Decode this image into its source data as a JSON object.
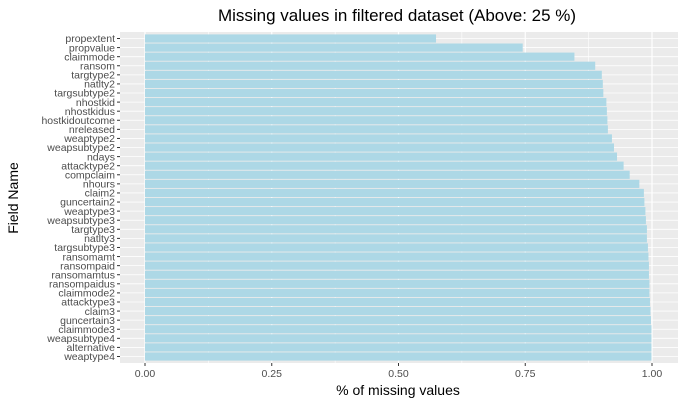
{
  "chart_data": {
    "type": "bar",
    "orientation": "horizontal",
    "title": "Missing values in filtered dataset (Above: 25 %)",
    "xlabel": "% of missing values",
    "ylabel": "Field Name",
    "xlim": [
      0,
      1.0
    ],
    "xticks": [
      "0.00",
      "0.25",
      "0.50",
      "0.75",
      "1.00"
    ],
    "grid": true,
    "bar_color": "#add8e6",
    "panel_color": "#ebebeb",
    "categories": [
      "propextent",
      "propvalue",
      "claimmode",
      "ransom",
      "targtype2",
      "natlty2",
      "targsubtype2",
      "nhostkid",
      "nhostkidus",
      "hostkidoutcome",
      "nreleased",
      "weaptype2",
      "weapsubtype2",
      "ndays",
      "attacktype2",
      "compclaim",
      "nhours",
      "claim2",
      "guncertain2",
      "weaptype3",
      "weapsubtype3",
      "targtype3",
      "natlty3",
      "targsubtype3",
      "ransomamt",
      "ransompaid",
      "ransomamtus",
      "ransompaidus",
      "claimmode2",
      "attacktype3",
      "claim3",
      "guncertain3",
      "claimmode3",
      "weapsubtype4",
      "alternative",
      "weaptype4"
    ],
    "values": [
      0.574,
      0.745,
      0.847,
      0.888,
      0.901,
      0.903,
      0.904,
      0.91,
      0.911,
      0.912,
      0.913,
      0.921,
      0.925,
      0.931,
      0.944,
      0.956,
      0.975,
      0.984,
      0.985,
      0.987,
      0.988,
      0.99,
      0.99,
      0.992,
      0.993,
      0.994,
      0.994,
      0.995,
      0.995,
      0.996,
      0.997,
      0.998,
      0.999,
      0.999,
      0.999,
      0.999
    ]
  }
}
